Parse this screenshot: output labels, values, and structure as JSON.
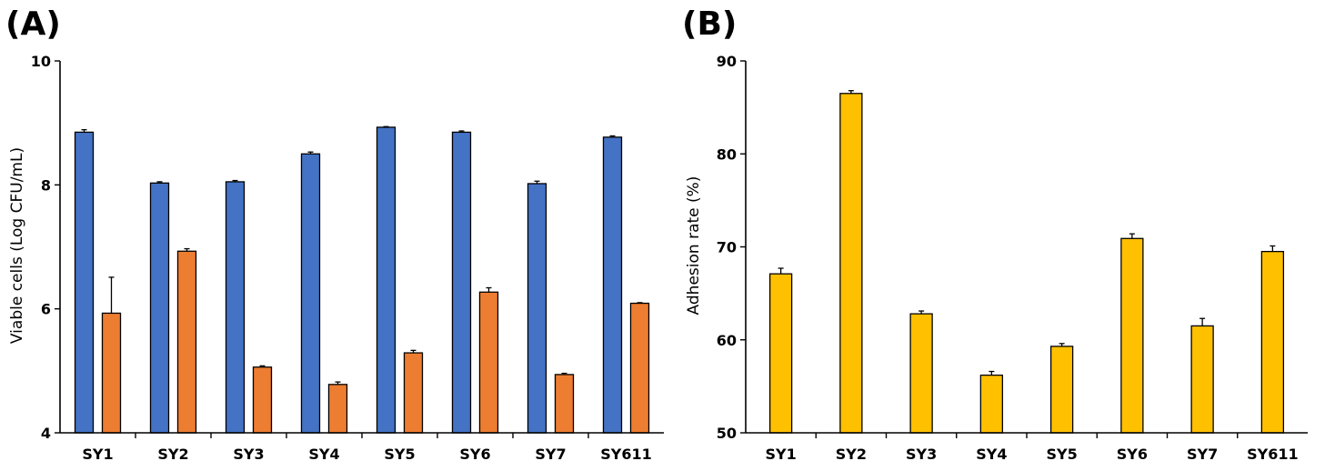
{
  "chart_data": [
    {
      "panel": "(A)",
      "type": "bar",
      "categories": [
        "SY1",
        "SY2",
        "SY3",
        "SY4",
        "SY5",
        "SY6",
        "SY7",
        "SY611"
      ],
      "series": [
        {
          "name": "blue",
          "color": "#4472C4",
          "values": [
            8.85,
            8.03,
            8.05,
            8.5,
            8.93,
            8.85,
            8.02,
            8.77
          ],
          "errors": [
            0.04,
            0.02,
            0.02,
            0.03,
            0.01,
            0.02,
            0.04,
            0.02
          ]
        },
        {
          "name": "orange",
          "color": "#ED7D31",
          "values": [
            5.93,
            6.93,
            5.06,
            4.78,
            5.29,
            6.27,
            4.94,
            6.09
          ],
          "errors": [
            0.58,
            0.04,
            0.02,
            0.04,
            0.04,
            0.07,
            0.02,
            0.01
          ]
        }
      ],
      "title": "",
      "xlabel": "",
      "ylabel": "Viable cells (Log CFU/mL)",
      "ylim": [
        4,
        10
      ],
      "yticks": [
        4,
        6,
        8,
        10
      ],
      "grid": false,
      "legend": "none"
    },
    {
      "panel": "(B)",
      "type": "bar",
      "categories": [
        "SY1",
        "SY2",
        "SY3",
        "SY4",
        "SY5",
        "SY6",
        "SY7",
        "SY611"
      ],
      "series": [
        {
          "name": "adhesion",
          "color": "#FFC000",
          "values": [
            67.1,
            86.5,
            62.8,
            56.2,
            59.3,
            70.9,
            61.5,
            69.5
          ],
          "errors": [
            0.6,
            0.3,
            0.3,
            0.4,
            0.3,
            0.5,
            0.8,
            0.6
          ]
        }
      ],
      "title": "",
      "xlabel": "",
      "ylabel": "Adhesion rate (%)",
      "ylim": [
        50,
        90
      ],
      "yticks": [
        50,
        60,
        70,
        80,
        90
      ],
      "grid": false,
      "legend": "none"
    }
  ]
}
